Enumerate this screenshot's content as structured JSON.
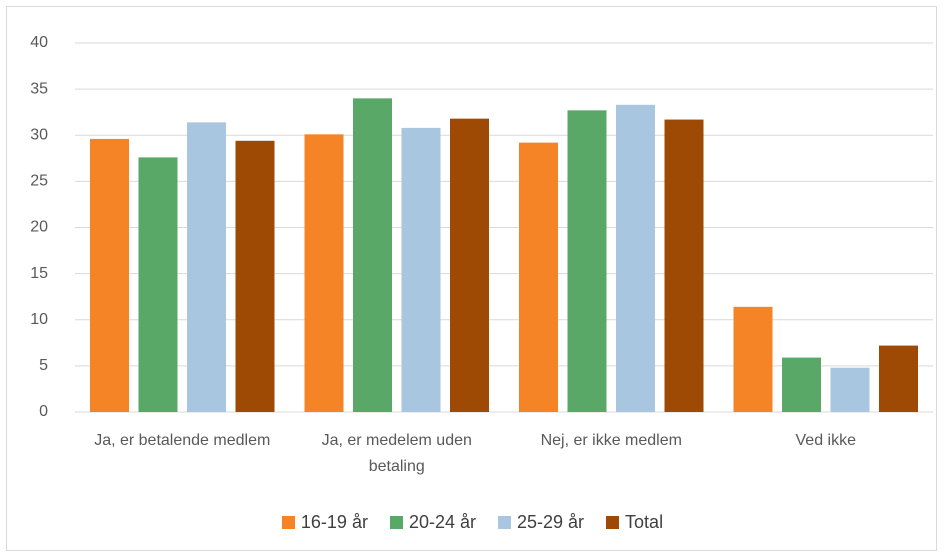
{
  "chart_data": {
    "type": "bar",
    "categories": [
      "Ja, er betalende medlem",
      "Ja, er medelem uden betaling",
      "Nej, er ikke medlem",
      "Ved ikke"
    ],
    "series": [
      {
        "name": "16-19 år",
        "color": "#f58426",
        "values": [
          29.6,
          30.1,
          29.2,
          11.4
        ]
      },
      {
        "name": "20-24 år",
        "color": "#5aa867",
        "values": [
          27.6,
          34.0,
          32.7,
          5.9
        ]
      },
      {
        "name": "25-29 år",
        "color": "#a9c6e0",
        "values": [
          31.4,
          30.8,
          33.3,
          4.8
        ]
      },
      {
        "name": "Total",
        "color": "#9e4a05",
        "values": [
          29.4,
          31.8,
          31.7,
          7.2
        ]
      }
    ],
    "ylim": [
      0,
      40
    ],
    "yticks": [
      0,
      5,
      10,
      15,
      20,
      25,
      30,
      35,
      40
    ],
    "grid": true,
    "legend": "bottom"
  }
}
